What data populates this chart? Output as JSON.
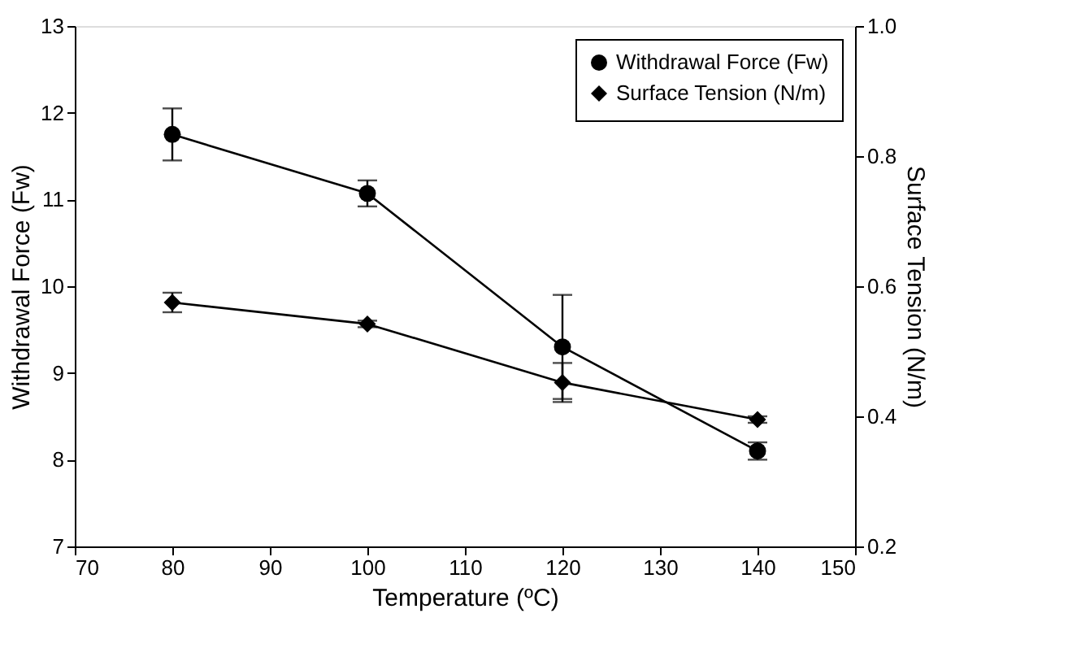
{
  "chart_data": {
    "type": "line",
    "xlabel": "Temperature (ºC)",
    "ylabel": "Withdrawal Force (Fw)",
    "y2label": "Surface Tension (N/m)",
    "x": [
      80,
      100,
      120,
      140
    ],
    "series": [
      {
        "name": "Withdrawal Force (Fw)",
        "color": "#000000",
        "marker": "circle",
        "values": [
          11.75,
          11.07,
          9.3,
          8.1
        ],
        "errors": [
          0.3,
          0.15,
          0.6,
          0.1
        ]
      },
      {
        "name": "Surface Tension (N/m)",
        "color": "#000000",
        "marker": "diamond",
        "axis": "y2",
        "values": [
          0.575,
          0.542,
          0.452,
          0.395
        ],
        "errors": [
          0.015,
          0.005,
          0.03,
          0.005
        ]
      }
    ],
    "xlim": [
      70,
      150
    ],
    "xticks": [
      70,
      80,
      90,
      100,
      110,
      120,
      130,
      140,
      150
    ],
    "ylim": [
      7,
      13
    ],
    "yticks": [
      7,
      8,
      9,
      10,
      11,
      12,
      13
    ],
    "y2lim": [
      0.2,
      1.0
    ],
    "y2ticks": [
      0.2,
      0.4,
      0.6,
      0.8,
      {
        "value": 1,
        "label": "1.0"
      }
    ],
    "grid": false,
    "legend": "top right",
    "line_style": "solid"
  }
}
